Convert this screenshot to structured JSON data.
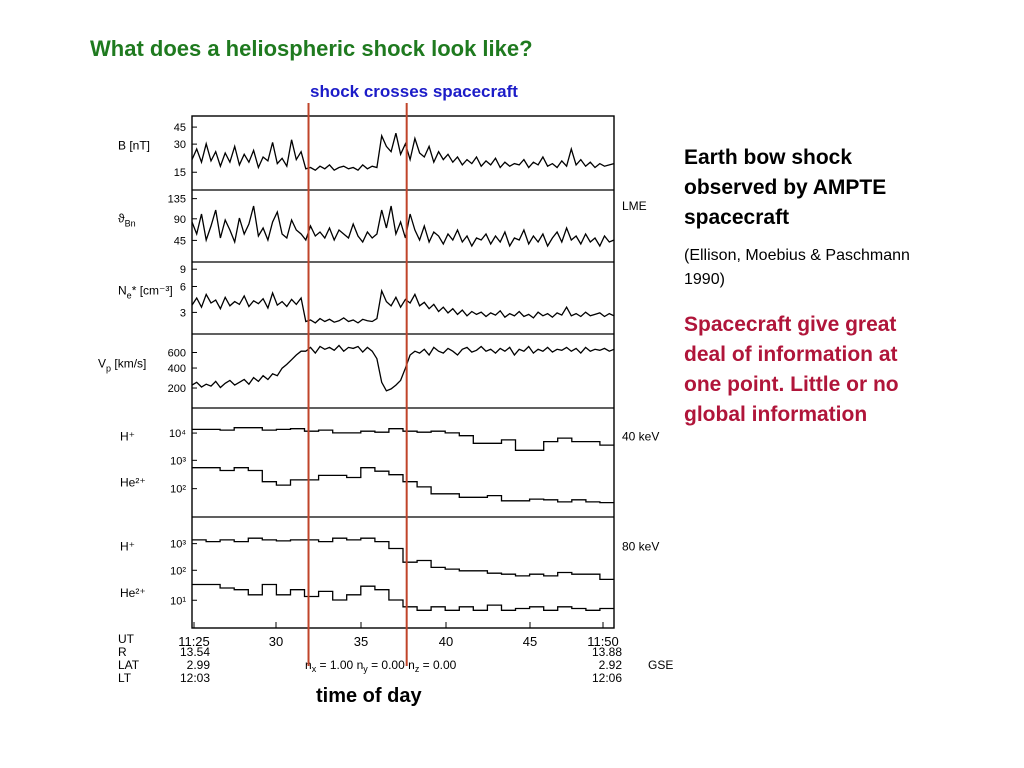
{
  "slide": {
    "title": "What does a heliospheric shock look like?",
    "shock_label": "shock crosses spacecraft",
    "time_label": "time of day",
    "side_heading": "Earth bow shock observed by AMPTE spacecraft",
    "side_citation": "(Ellison, Moebius & Paschmann 1990)",
    "side_note": "Spacecraft give great deal of information at one point. Little or no global information",
    "colors": {
      "title": "#1f7a1f",
      "shock_label": "#1c1cc8",
      "shock_line": "#c0442a",
      "side_note": "#b0153a"
    }
  },
  "chart_data": {
    "type": "line",
    "x_ticks": [
      "11:25",
      "30",
      "35",
      "40",
      "45",
      "11:50"
    ],
    "x_range": [
      "11:25",
      "11:50"
    ],
    "shock_times": [
      "11:32",
      "11:38"
    ],
    "panels": [
      {
        "label_main": "B [nT]",
        "label_sub": "",
        "yticks": [
          "45",
          "30",
          "15"
        ],
        "right_label": "",
        "traces": [
          {
            "y": [
              20,
              28,
              18,
              32,
              19,
              26,
              15,
              25,
              18,
              30,
              16,
              24,
              18,
              27,
              14,
              22,
              19,
              33,
              17,
              21,
              15,
              35,
              20,
              26,
              13,
              14,
              12,
              15,
              13,
              16,
              12,
              14,
              15,
              13,
              14,
              12,
              16,
              13,
              15,
              14,
              38,
              30,
              26,
              40,
              24,
              32,
              20,
              36,
              25,
              22,
              30,
              18,
              26,
              20,
              24,
              18,
              22,
              16,
              20,
              17,
              22,
              15,
              19,
              16,
              21,
              14,
              18,
              15,
              17,
              16,
              20,
              14,
              18,
              16,
              22,
              15,
              17,
              14,
              19,
              15,
              28,
              16,
              20,
              15,
              18,
              14,
              17,
              15,
              16,
              17
            ]
          }
        ]
      },
      {
        "label_main": "ϑ",
        "label_sub": "Bn",
        "yticks": [
          "135",
          "90",
          "45"
        ],
        "right_label": "LME",
        "traces": [
          {
            "y": [
              90,
              60,
              110,
              45,
              80,
              120,
              50,
              95,
              70,
              40,
              100,
              60,
              85,
              130,
              55,
              75,
              45,
              90,
              115,
              60,
              50,
              95,
              70,
              60,
              45,
              80,
              55,
              65,
              50,
              75,
              45,
              70,
              60,
              50,
              85,
              55,
              40,
              65,
              50,
              60,
              120,
              75,
              130,
              60,
              90,
              50,
              110,
              70,
              45,
              80,
              40,
              65,
              55,
              35,
              60,
              45,
              70,
              40,
              55,
              30,
              50,
              45,
              60,
              35,
              55,
              40,
              65,
              30,
              50,
              45,
              70,
              35,
              55,
              40,
              60,
              30,
              50,
              65,
              40,
              75,
              45,
              55,
              35,
              60,
              40,
              50,
              30,
              55,
              40,
              45
            ]
          }
        ]
      },
      {
        "label_main": "N",
        "label_sub": "e",
        "label_extra": "* [cm⁻³]",
        "yticks": [
          "9",
          "6",
          "3"
        ],
        "right_label": "",
        "traces": [
          {
            "y": [
              4.5,
              5.5,
              4.2,
              6.0,
              4.8,
              5.2,
              4.0,
              5.6,
              4.4,
              5.0,
              4.6,
              5.8,
              4.3,
              5.1,
              4.7,
              5.4,
              4.1,
              6.2,
              4.5,
              5.0,
              4.3,
              5.3,
              4.6,
              5.5,
              2.2,
              2.4,
              2.0,
              2.6,
              2.2,
              2.5,
              2.1,
              2.3,
              2.7,
              2.2,
              2.4,
              2.0,
              2.5,
              2.3,
              2.2,
              2.6,
              6.5,
              5.0,
              4.4,
              5.6,
              4.2,
              5.3,
              4.8,
              6.0,
              4.4,
              4.9,
              4.0,
              4.6,
              3.6,
              4.2,
              3.4,
              4.0,
              3.2,
              3.8,
              3.0,
              3.6,
              3.2,
              3.5,
              2.9,
              3.4,
              3.1,
              3.7,
              2.8,
              3.3,
              3.0,
              3.6,
              2.9,
              3.2,
              2.7,
              3.5,
              3.0,
              3.3,
              2.8,
              3.4,
              3.1,
              4.2,
              3.0,
              3.3,
              2.9,
              3.5,
              3.0,
              3.2,
              3.4,
              2.9,
              3.3,
              3.0
            ]
          }
        ]
      },
      {
        "label_main": "V",
        "label_sub": "p",
        "label_extra": " [km/s]",
        "yticks": [
          "600",
          "400",
          "200"
        ],
        "right_label": "",
        "traces": [
          {
            "y": [
              200,
              230,
              180,
              210,
              190,
              240,
              175,
              220,
              250,
              200,
              230,
              260,
              210,
              280,
              240,
              300,
              260,
              320,
              300,
              380,
              420,
              470,
              520,
              560,
              560,
              600,
              540,
              610,
              580,
              600,
              570,
              620,
              560,
              600,
              590,
              610,
              550,
              600,
              560,
              480,
              230,
              140,
              160,
              200,
              250,
              380,
              520,
              560,
              540,
              580,
              520,
              600,
              560,
              540,
              590,
              560,
              520,
              580,
              600,
              550,
              570,
              610,
              560,
              580,
              540,
              590,
              560,
              600,
              520,
              580,
              560,
              610,
              540,
              580,
              560,
              600,
              550,
              580,
              570,
              600,
              560,
              590,
              540,
              600,
              560,
              580,
              570,
              590,
              560,
              580
            ]
          }
        ]
      },
      {
        "label_main": "",
        "label_sub": "",
        "yticks": [
          "10⁴",
          "10³",
          "10²"
        ],
        "right_label": "40 keV",
        "series_labels": [
          "H⁺",
          "He²⁺"
        ],
        "traces": [
          {
            "name": "H⁺",
            "y": [
              3.9,
              3.9,
              3.88,
              3.95,
              3.95,
              3.88,
              3.9,
              3.92,
              3.85,
              3.88,
              3.8,
              3.8,
              3.85,
              3.82,
              3.92,
              3.85,
              3.82,
              3.85,
              3.8,
              3.72,
              3.5,
              3.5,
              3.6,
              3.3,
              3.3,
              3.55,
              3.65,
              3.55,
              3.55,
              3.45
            ]
          },
          {
            "name": "He²⁺",
            "y": [
              2.8,
              2.8,
              2.72,
              2.8,
              2.72,
              2.4,
              2.3,
              2.45,
              2.45,
              2.58,
              2.58,
              2.52,
              2.8,
              2.7,
              2.6,
              2.4,
              2.25,
              2.05,
              2.05,
              1.95,
              1.95,
              2.0,
              1.85,
              1.85,
              1.9,
              1.88,
              1.82,
              1.88,
              1.82,
              1.8
            ]
          }
        ]
      },
      {
        "label_main": "",
        "label_sub": "",
        "yticks": [
          "10³",
          "10²",
          "10¹"
        ],
        "right_label": "80 keV",
        "series_labels": [
          "H⁺",
          "He²⁺"
        ],
        "traces": [
          {
            "name": "H⁺",
            "y": [
              2.85,
              2.8,
              2.85,
              2.8,
              2.9,
              2.85,
              2.82,
              2.85,
              2.85,
              2.8,
              2.9,
              2.85,
              2.9,
              2.8,
              2.6,
              2.2,
              2.25,
              2.05,
              2.0,
              1.95,
              1.95,
              1.88,
              1.85,
              1.8,
              1.85,
              1.8,
              1.9,
              1.85,
              1.85,
              1.7
            ]
          },
          {
            "name": "He²⁺",
            "y": [
              1.55,
              1.55,
              1.45,
              1.4,
              1.25,
              1.55,
              1.25,
              1.4,
              1.2,
              1.35,
              1.1,
              1.25,
              1.5,
              1.4,
              1.1,
              0.9,
              0.8,
              0.9,
              0.8,
              0.9,
              0.8,
              0.95,
              0.8,
              0.85,
              0.9,
              0.8,
              0.9,
              0.85,
              0.8,
              0.85
            ]
          }
        ]
      }
    ],
    "footer_rows": [
      {
        "label": "UT",
        "start": "11:25",
        "end": "11:50"
      },
      {
        "label": "R",
        "start": "13.54",
        "end": "13.88"
      },
      {
        "label": "LAT",
        "start": "2.99",
        "end": "2.92"
      },
      {
        "label": "LT",
        "start": "12:03",
        "end": "12:06"
      }
    ],
    "normal_vector": {
      "nx": "1.00",
      "ny": "0.00",
      "nz": "0.00",
      "frame": "GSE"
    }
  }
}
